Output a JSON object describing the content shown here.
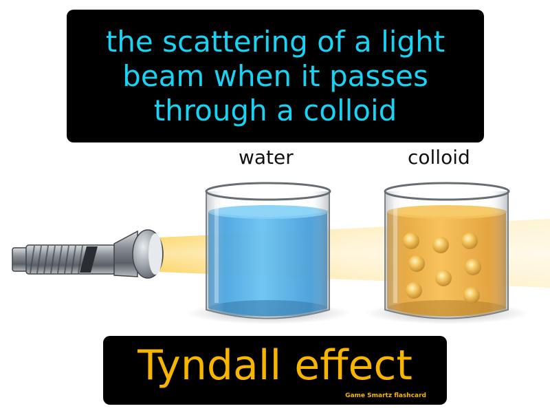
{
  "definition": {
    "line1": "the scattering of a light",
    "line2": "beam when it passes",
    "line3": "through a colloid"
  },
  "labels": {
    "water": "water",
    "colloid": "colloid"
  },
  "term": "Tyndall effect",
  "brand": "Game  Smartz  flashcard",
  "colors": {
    "definition_text": "#19d3f5",
    "term_text": "#f7b500",
    "water": "#2fa2e6",
    "colloid": "#f2a416",
    "beam": "#fbd25a"
  }
}
